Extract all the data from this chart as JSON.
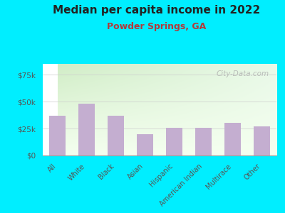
{
  "title": "Median per capita income in 2022",
  "subtitle": "Powder Springs, GA",
  "categories": [
    "All",
    "White",
    "Black",
    "Asian",
    "Hispanic",
    "American Indian",
    "Multirace",
    "Other"
  ],
  "values": [
    37000,
    48000,
    37000,
    20000,
    26000,
    26000,
    30000,
    27000
  ],
  "bar_color": "#c4aed0",
  "title_color": "#222222",
  "subtitle_color": "#b03a3a",
  "background_outer": "#00eeff",
  "yticks": [
    0,
    25000,
    50000,
    75000
  ],
  "ytick_labels": [
    "$0",
    "$25k",
    "$50k",
    "$75k"
  ],
  "watermark": "City-Data.com",
  "ylim": [
    0,
    85000
  ]
}
